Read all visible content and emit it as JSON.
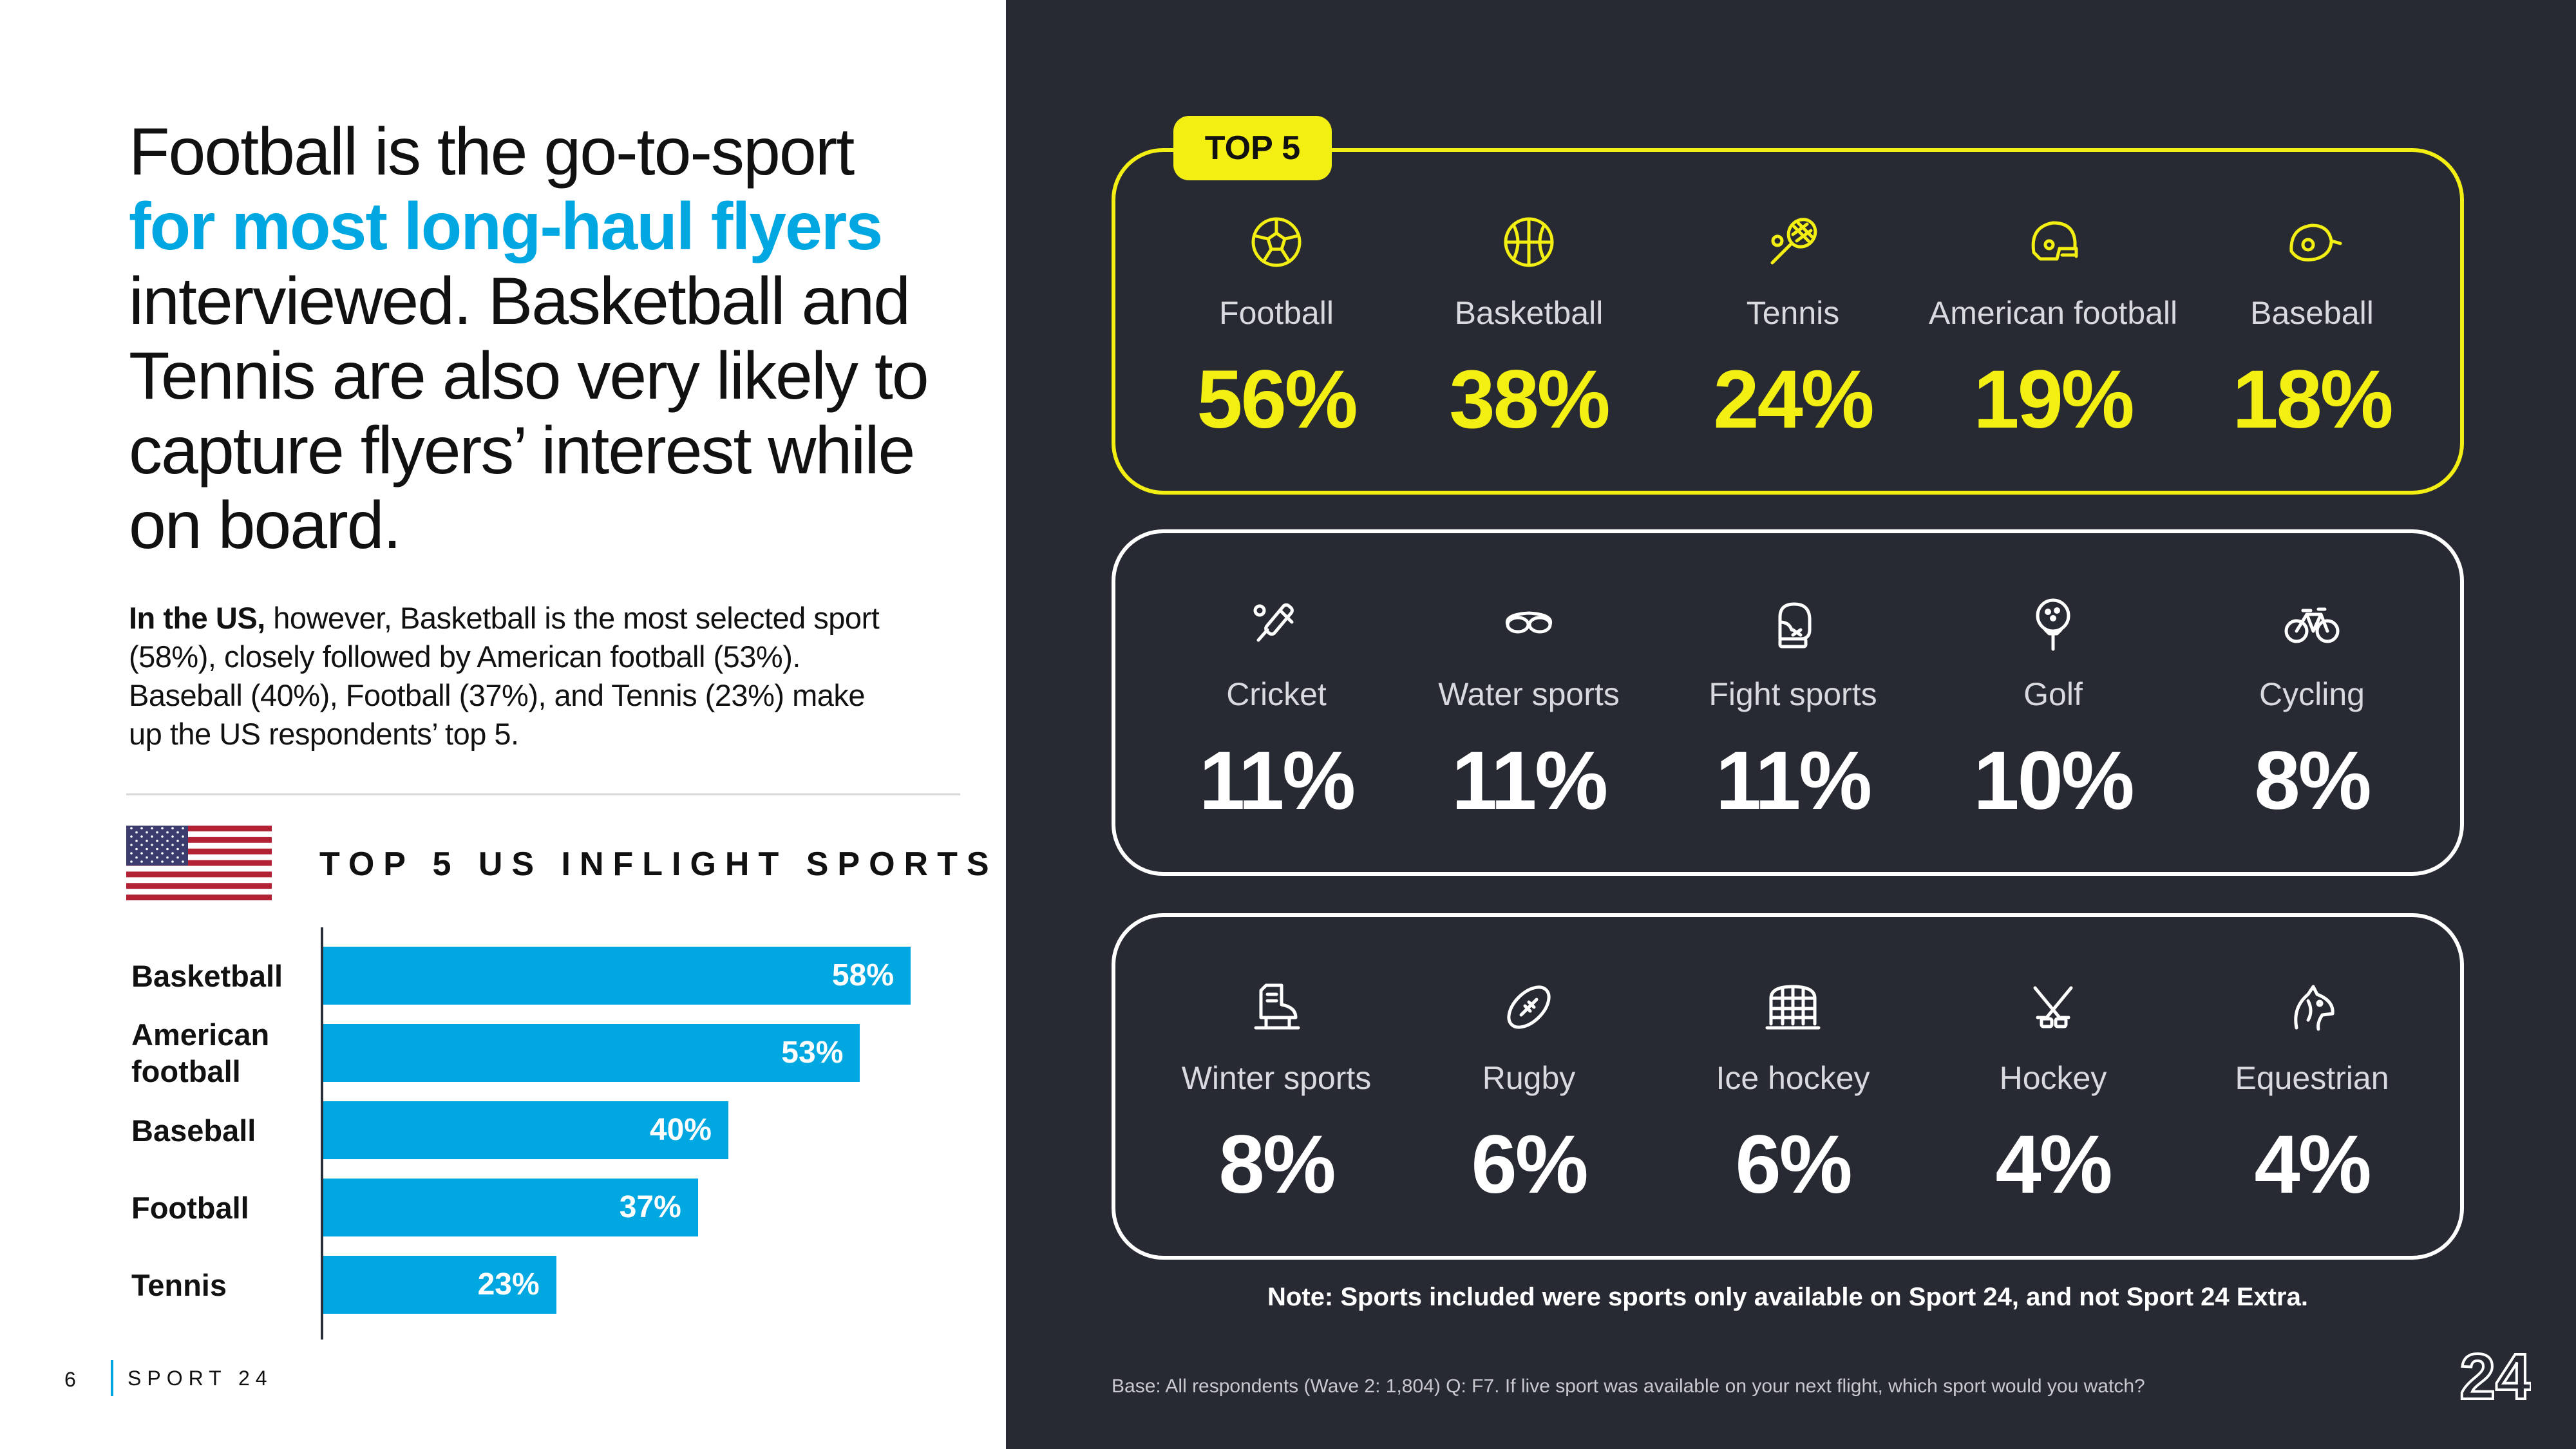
{
  "left": {
    "headline_line1": "Football is the go-to-sport",
    "headline_highlight": "for most long-haul flyers",
    "headline_rest": "interviewed. Basketball and Tennis are also very likely to capture flyers’ interest while on board.",
    "sub_bold": "In the US,",
    "sub_text": " however, Basketball is the most selected sport (58%), closely followed by American football (53%). Baseball (40%), Football (37%), and Tennis (23%) make up the US respondents’ top 5.",
    "us_title": "TOP 5 US INFLIGHT SPORTS",
    "page_number": "6",
    "brand": "SPORT 24"
  },
  "chart_data": [
    {
      "type": "bar",
      "orientation": "horizontal",
      "title": "TOP 5 US INFLIGHT SPORTS",
      "categories": [
        "Basketball",
        "American football",
        "Baseball",
        "Football",
        "Tennis"
      ],
      "values": [
        58,
        53,
        40,
        37,
        23
      ],
      "labels": [
        "58%",
        "53%",
        "40%",
        "37%",
        "23%"
      ],
      "xlim": [
        0,
        58
      ],
      "color": "#00a7e1"
    },
    {
      "type": "table",
      "tag": "TOP 5",
      "rows": [
        [
          {
            "name": "Football",
            "value": 56,
            "label": "56%",
            "icon": "soccer-ball-icon"
          },
          {
            "name": "Basketball",
            "value": 38,
            "label": "38%",
            "icon": "basketball-icon"
          },
          {
            "name": "Tennis",
            "value": 24,
            "label": "24%",
            "icon": "tennis-racket-icon"
          },
          {
            "name": "American football",
            "value": 19,
            "label": "19%",
            "icon": "football-helmet-icon"
          },
          {
            "name": "Baseball",
            "value": 18,
            "label": "18%",
            "icon": "baseball-helmet-icon"
          }
        ],
        [
          {
            "name": "Cricket",
            "value": 11,
            "label": "11%",
            "icon": "cricket-bat-icon"
          },
          {
            "name": "Water sports",
            "value": 11,
            "label": "11%",
            "icon": "swim-goggles-icon"
          },
          {
            "name": "Fight sports",
            "value": 11,
            "label": "11%",
            "icon": "boxing-glove-icon"
          },
          {
            "name": "Golf",
            "value": 10,
            "label": "10%",
            "icon": "golf-ball-icon"
          },
          {
            "name": "Cycling",
            "value": 8,
            "label": "8%",
            "icon": "bicycle-icon"
          }
        ],
        [
          {
            "name": "Winter sports",
            "value": 8,
            "label": "8%",
            "icon": "ice-skate-icon"
          },
          {
            "name": "Rugby",
            "value": 6,
            "label": "6%",
            "icon": "rugby-ball-icon"
          },
          {
            "name": "Ice hockey",
            "value": 6,
            "label": "6%",
            "icon": "hockey-goal-icon"
          },
          {
            "name": "Hockey",
            "value": 4,
            "label": "4%",
            "icon": "hockey-sticks-icon"
          },
          {
            "name": "Equestrian",
            "value": 4,
            "label": "4%",
            "icon": "horse-head-icon"
          }
        ]
      ]
    }
  ],
  "right": {
    "note": "Note: Sports included were sports only available on Sport 24, and not Sport 24 Extra.",
    "base": "Base: All respondents (Wave 2: 1,804) Q: F7. If live sport was available on your next flight, which sport would you watch?",
    "logo_text": "24"
  },
  "colors": {
    "accent_blue": "#00a7e1",
    "accent_yellow": "#f4ef12",
    "dark_panel": "#272a33"
  }
}
